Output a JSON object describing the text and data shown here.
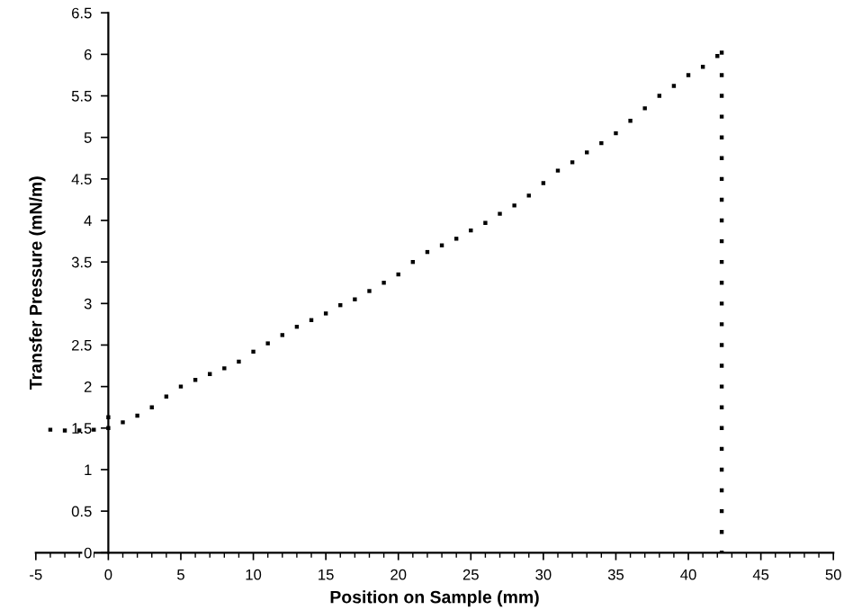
{
  "chart_data": {
    "type": "scatter",
    "xlabel": "Position on Sample (mm)",
    "ylabel": "Transfer Pressure (mN/m)",
    "series": [
      {
        "color": "#000000",
        "x": [
          -4,
          -3,
          -2,
          -1,
          0,
          0,
          1,
          2,
          3,
          4,
          5,
          6,
          7,
          8,
          9,
          10,
          11,
          12,
          13,
          14,
          15,
          16,
          17,
          18,
          19,
          20,
          21,
          22,
          23,
          24,
          25,
          26,
          27,
          28,
          29,
          30,
          31,
          32,
          33,
          34,
          35,
          36,
          37,
          38,
          39,
          40,
          41,
          42,
          42.3,
          42.3,
          42.3,
          42.3,
          42.3,
          42.3,
          42.3,
          42.3,
          42.3,
          42.3,
          42.3,
          42.3,
          42.3,
          42.3,
          42.3,
          42.3,
          42.3,
          42.3,
          42.3,
          42.3,
          42.3,
          42.3,
          42.3,
          42.3,
          42.3
        ],
        "values": [
          1.48,
          1.47,
          1.47,
          1.48,
          1.5,
          1.63,
          1.57,
          1.65,
          1.75,
          1.88,
          2.0,
          2.08,
          2.15,
          2.22,
          2.3,
          2.42,
          2.52,
          2.62,
          2.72,
          2.8,
          2.88,
          2.98,
          3.05,
          3.15,
          3.25,
          3.35,
          3.5,
          3.62,
          3.7,
          3.78,
          3.88,
          3.97,
          4.08,
          4.18,
          4.3,
          4.45,
          4.6,
          4.7,
          4.82,
          4.93,
          5.05,
          5.2,
          5.35,
          5.5,
          5.62,
          5.75,
          5.85,
          5.98,
          6.02,
          5.75,
          5.5,
          5.25,
          5.0,
          4.75,
          4.5,
          4.25,
          4.0,
          3.75,
          3.5,
          3.25,
          3.0,
          2.75,
          2.5,
          2.25,
          2.0,
          1.75,
          1.5,
          1.25,
          1.0,
          0.75,
          0.5,
          0.25,
          0.0
        ]
      }
    ],
    "marker": "square",
    "grid": false,
    "legend": false,
    "xlim": [
      -5,
      50
    ],
    "xticks": [
      -5,
      0,
      5,
      10,
      15,
      20,
      25,
      30,
      35,
      40,
      45,
      50
    ],
    "ylim": [
      0,
      6.5
    ],
    "yticks": [
      0,
      0.5,
      1,
      1.5,
      2,
      2.5,
      3,
      3.5,
      4,
      4.5,
      5,
      5.5,
      6,
      6.5
    ]
  }
}
